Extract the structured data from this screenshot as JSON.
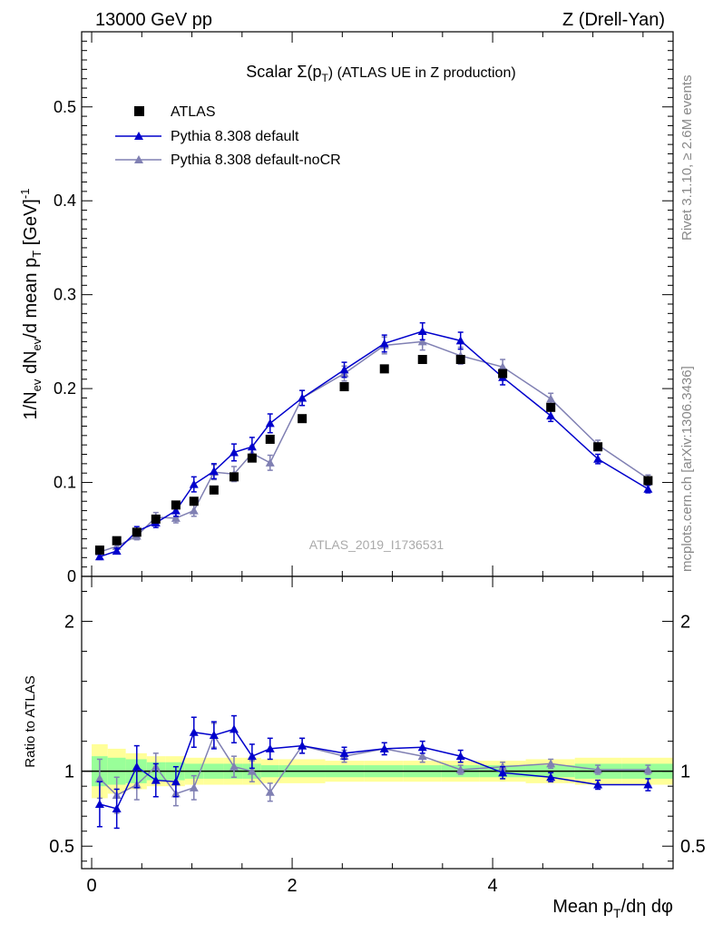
{
  "header": {
    "left": "13000 GeV pp",
    "right": "Z (Drell-Yan)"
  },
  "side_labels": {
    "rivet": "Rivet 3.1.10, ≥ 2.6M events",
    "mcplots": "mcplots.cern.ch [arXiv:1306.3436]"
  },
  "plot_title": {
    "main": "Scalar Σ(p",
    "sub": "T",
    "tail": ") (ATLAS UE in Z production)"
  },
  "watermark": "ATLAS_2019_I1736531",
  "colors": {
    "data": "#000000",
    "default": "#0000cc",
    "noCR": "#8080b3",
    "band_inner": "#99ff99",
    "band_outer": "#ffff99"
  },
  "chart_data": [
    {
      "type": "line",
      "panel": "main",
      "ylabel": "1/N_ev dN_ev/d mean p_T [GeV]^-1",
      "ylim": [
        0,
        0.58
      ],
      "xlim": [
        -0.1,
        5.8
      ],
      "yticks": [
        "0",
        "0.1",
        "0.2",
        "0.3",
        "0.4",
        "0.5"
      ],
      "legend_position": "top-left",
      "series": [
        {
          "name": "ATLAS",
          "x": [
            0.08,
            0.25,
            0.45,
            0.64,
            0.84,
            1.02,
            1.22,
            1.42,
            1.6,
            1.78,
            2.1,
            2.52,
            2.92,
            3.3,
            3.68,
            4.1,
            4.58,
            5.05,
            5.55
          ],
          "y": [
            0.028,
            0.038,
            0.047,
            0.061,
            0.076,
            0.08,
            0.092,
            0.106,
            0.126,
            0.146,
            0.168,
            0.202,
            0.221,
            0.231,
            0.231,
            0.216,
            0.18,
            0.138,
            0.102
          ]
        },
        {
          "name": "Pythia 8.308 default",
          "x": [
            0.08,
            0.25,
            0.45,
            0.64,
            0.84,
            1.02,
            1.22,
            1.42,
            1.6,
            1.78,
            2.1,
            2.52,
            2.92,
            3.3,
            3.68,
            4.1,
            4.58,
            5.05,
            5.55
          ],
          "y": [
            0.021,
            0.027,
            0.048,
            0.057,
            0.07,
            0.098,
            0.112,
            0.132,
            0.138,
            0.163,
            0.19,
            0.22,
            0.248,
            0.261,
            0.251,
            0.212,
            0.171,
            0.125,
            0.093
          ],
          "err": [
            0.003,
            0.003,
            0.005,
            0.005,
            0.006,
            0.008,
            0.008,
            0.009,
            0.01,
            0.01,
            0.008,
            0.008,
            0.009,
            0.009,
            0.009,
            0.008,
            0.006,
            0.005,
            0.004
          ]
        },
        {
          "name": "Pythia 8.308 default-noCR",
          "x": [
            0.08,
            0.25,
            0.45,
            0.64,
            0.84,
            1.02,
            1.22,
            1.42,
            1.6,
            1.78,
            2.1,
            2.52,
            2.92,
            3.3,
            3.68,
            4.1,
            4.58,
            5.05,
            5.55
          ],
          "y": [
            0.026,
            0.032,
            0.043,
            0.063,
            0.062,
            0.07,
            0.111,
            0.109,
            0.131,
            0.121,
            0.19,
            0.216,
            0.246,
            0.25,
            0.235,
            0.223,
            0.189,
            0.14,
            0.104
          ],
          "err": [
            0.003,
            0.003,
            0.004,
            0.005,
            0.005,
            0.006,
            0.008,
            0.008,
            0.008,
            0.008,
            0.008,
            0.008,
            0.009,
            0.009,
            0.009,
            0.008,
            0.006,
            0.005,
            0.004
          ]
        }
      ]
    },
    {
      "type": "line",
      "panel": "ratio",
      "ylabel": "Ratio to ATLAS",
      "xlabel": "Mean p_T/dη dφ",
      "ylim": [
        0.35,
        2.3
      ],
      "xlim": [
        -0.1,
        5.8
      ],
      "yticks": [
        "0.5",
        "1",
        "2"
      ],
      "xticks": [
        "0",
        "2",
        "4"
      ],
      "series": [
        {
          "name": "Pythia 8.308 default",
          "x": [
            0.08,
            0.25,
            0.45,
            0.64,
            0.84,
            1.02,
            1.22,
            1.42,
            1.6,
            1.78,
            2.1,
            2.52,
            2.92,
            3.3,
            3.68,
            4.1,
            4.58,
            5.05,
            5.55
          ],
          "y": [
            0.78,
            0.75,
            1.03,
            0.94,
            0.93,
            1.26,
            1.24,
            1.28,
            1.1,
            1.15,
            1.17,
            1.12,
            1.15,
            1.16,
            1.1,
            0.99,
            0.96,
            0.91,
            0.91
          ],
          "err": [
            0.15,
            0.13,
            0.14,
            0.11,
            0.1,
            0.1,
            0.09,
            0.09,
            0.08,
            0.07,
            0.05,
            0.04,
            0.04,
            0.04,
            0.04,
            0.04,
            0.03,
            0.03,
            0.04
          ]
        },
        {
          "name": "Pythia 8.308 default-noCR",
          "x": [
            0.08,
            0.25,
            0.45,
            0.64,
            0.84,
            1.02,
            1.22,
            1.42,
            1.6,
            1.78,
            2.1,
            2.52,
            2.92,
            3.3,
            3.68,
            4.1,
            4.58,
            5.05,
            5.55
          ],
          "y": [
            0.95,
            0.84,
            0.91,
            1.03,
            0.85,
            0.89,
            1.24,
            1.03,
            1.0,
            0.86,
            1.17,
            1.1,
            1.15,
            1.1,
            1.01,
            1.03,
            1.05,
            1.01,
            1.01
          ],
          "err": [
            0.13,
            0.12,
            0.1,
            0.09,
            0.08,
            0.08,
            0.08,
            0.07,
            0.07,
            0.06,
            0.05,
            0.04,
            0.04,
            0.04,
            0.03,
            0.03,
            0.03,
            0.03,
            0.03
          ]
        }
      ],
      "band_edges": [
        0.0,
        0.16,
        0.34,
        0.55,
        0.74,
        0.93,
        1.12,
        1.32,
        1.51,
        1.69,
        1.87,
        2.33,
        2.72,
        3.11,
        3.49,
        3.87,
        4.33,
        4.82,
        5.29,
        5.8
      ],
      "band_inner": [
        0.1,
        0.09,
        0.08,
        0.06,
        0.06,
        0.05,
        0.05,
        0.05,
        0.05,
        0.04,
        0.04,
        0.04,
        0.04,
        0.04,
        0.04,
        0.04,
        0.04,
        0.05,
        0.05
      ],
      "band_outer": [
        0.18,
        0.15,
        0.12,
        0.1,
        0.1,
        0.09,
        0.09,
        0.09,
        0.09,
        0.08,
        0.08,
        0.07,
        0.07,
        0.07,
        0.07,
        0.07,
        0.08,
        0.09,
        0.09
      ]
    }
  ]
}
